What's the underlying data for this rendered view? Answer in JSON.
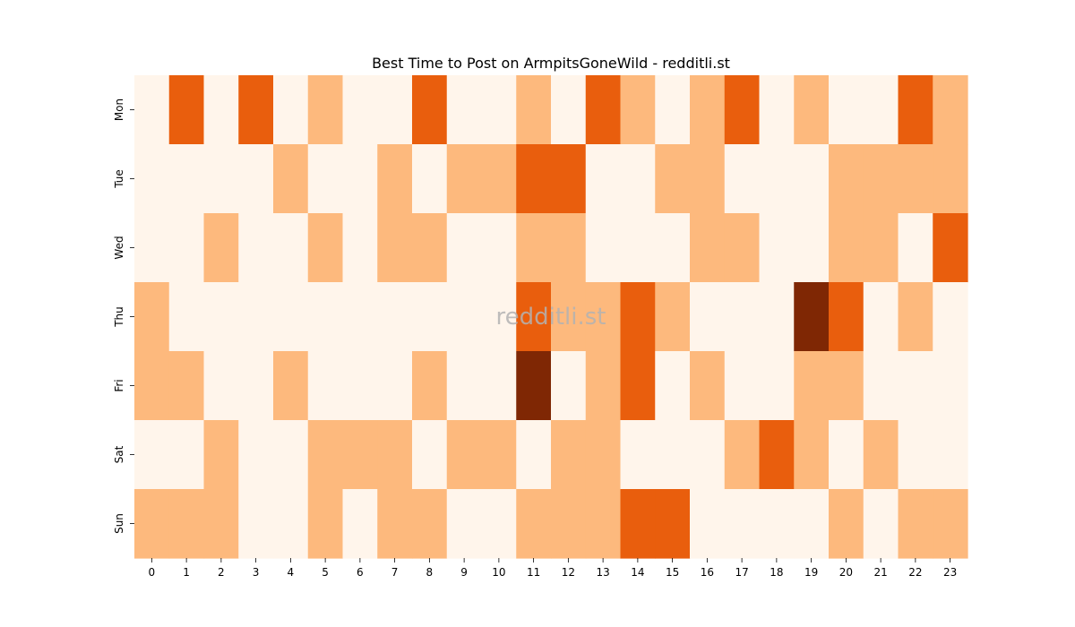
{
  "chart_data": {
    "type": "heatmap",
    "title": "Best Time to Post on ArmpitsGoneWild - redditli.st",
    "xlabel": "",
    "ylabel": "",
    "x_categories": [
      "0",
      "1",
      "2",
      "3",
      "4",
      "5",
      "6",
      "7",
      "8",
      "9",
      "10",
      "11",
      "12",
      "13",
      "14",
      "15",
      "16",
      "17",
      "18",
      "19",
      "20",
      "21",
      "22",
      "23"
    ],
    "y_categories": [
      "Mon",
      "Tue",
      "Wed",
      "Thu",
      "Fri",
      "Sat",
      "Sun"
    ],
    "values": [
      [
        0,
        2,
        0,
        2,
        0,
        1,
        0,
        0,
        2,
        0,
        0,
        1,
        0,
        2,
        1,
        0,
        1,
        2,
        0,
        1,
        0,
        0,
        2,
        1
      ],
      [
        0,
        0,
        0,
        0,
        1,
        0,
        0,
        1,
        0,
        1,
        1,
        2,
        2,
        0,
        0,
        1,
        1,
        0,
        0,
        0,
        1,
        1,
        1,
        1
      ],
      [
        0,
        0,
        1,
        0,
        0,
        1,
        0,
        1,
        1,
        0,
        0,
        1,
        1,
        0,
        0,
        0,
        1,
        1,
        0,
        0,
        1,
        1,
        0,
        2
      ],
      [
        1,
        0,
        0,
        0,
        0,
        0,
        0,
        0,
        0,
        0,
        0,
        2,
        1,
        1,
        2,
        1,
        0,
        0,
        0,
        3,
        2,
        0,
        1,
        0
      ],
      [
        1,
        1,
        0,
        0,
        1,
        0,
        0,
        0,
        1,
        0,
        0,
        3,
        0,
        1,
        2,
        0,
        1,
        0,
        0,
        1,
        1,
        0,
        0,
        0
      ],
      [
        0,
        0,
        1,
        0,
        0,
        1,
        1,
        1,
        0,
        1,
        1,
        0,
        1,
        1,
        0,
        0,
        0,
        1,
        2,
        1,
        0,
        1,
        0,
        0
      ],
      [
        1,
        1,
        1,
        0,
        0,
        1,
        0,
        1,
        1,
        0,
        0,
        1,
        1,
        1,
        2,
        2,
        0,
        0,
        0,
        0,
        1,
        0,
        1,
        1
      ]
    ],
    "colors": [
      "#fff5eb",
      "#fdb97d",
      "#e95e0d",
      "#7f2704"
    ],
    "watermark": "redditli.st",
    "colorbar": false,
    "grid": false
  }
}
